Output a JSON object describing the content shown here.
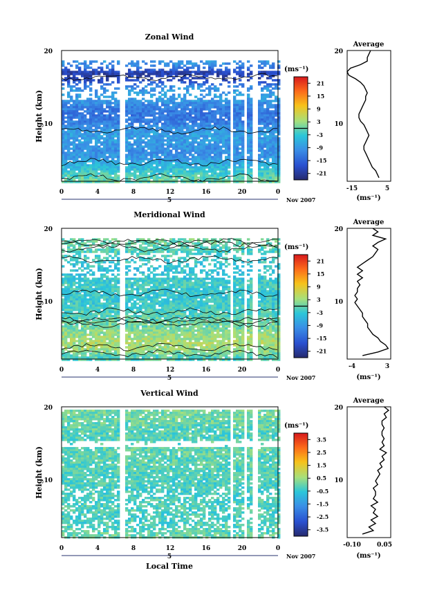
{
  "date_label": "Nov 2007",
  "day_label": "5",
  "shared_xlabel": "Local Time",
  "x_ticks": [
    "0",
    "4",
    "8",
    "12",
    "16",
    "20",
    "0"
  ],
  "y_ticks": [
    "10",
    "20"
  ],
  "units_label": "(ms⁻¹)",
  "avg_title": "Average",
  "avg_xlabel": "(ms⁻¹)",
  "chart_data": [
    {
      "type": "heatmap",
      "title": "Zonal Wind",
      "xlabel": "Local Time",
      "ylabel": "Height (km)",
      "xlim": [
        0,
        24
      ],
      "ylim": [
        1.5,
        20
      ],
      "colorbar_label": "(ms⁻¹)",
      "colorbar_ticks": [
        "21",
        "15",
        "9",
        "3",
        "-3",
        "-9",
        "-15",
        "-21"
      ],
      "colorbar_range": [
        -24,
        24
      ],
      "contour_level": 0,
      "data_gaps_hours": [
        6.6,
        18.6,
        20.3,
        21.3
      ],
      "profile_by_height": [
        [
          2,
          0
        ],
        [
          3,
          -3
        ],
        [
          4,
          -6
        ],
        [
          5,
          -9
        ],
        [
          6,
          -10
        ],
        [
          7,
          -9
        ],
        [
          8,
          -8
        ],
        [
          9,
          -9
        ],
        [
          10,
          -12
        ],
        [
          11,
          -13
        ],
        [
          12,
          -12
        ],
        [
          13,
          -9
        ],
        [
          14,
          -8
        ],
        [
          15,
          -10
        ],
        [
          16,
          -19
        ],
        [
          17,
          -20
        ],
        [
          18,
          -11
        ],
        [
          19,
          -8
        ]
      ]
    },
    {
      "type": "line",
      "title": "Average",
      "xlabel": "(ms⁻¹)",
      "ylabel": "Height (km)",
      "xlim": [
        -20,
        6
      ],
      "ylim": [
        1.5,
        20
      ],
      "x_ticks": [
        "-15",
        "5"
      ],
      "y_ticks": [
        "10",
        "20"
      ],
      "points": [
        [
          -1,
          2
        ],
        [
          -2,
          2.5
        ],
        [
          -3,
          3
        ],
        [
          -5,
          3.5
        ],
        [
          -6,
          4
        ],
        [
          -7,
          4.5
        ],
        [
          -8,
          5
        ],
        [
          -9,
          5.5
        ],
        [
          -10,
          6
        ],
        [
          -10,
          6.5
        ],
        [
          -9,
          7
        ],
        [
          -8,
          7.5
        ],
        [
          -7,
          8
        ],
        [
          -8,
          8.5
        ],
        [
          -9,
          9
        ],
        [
          -10,
          9.5
        ],
        [
          -12,
          10
        ],
        [
          -13,
          10.5
        ],
        [
          -13,
          11
        ],
        [
          -12,
          11.5
        ],
        [
          -11,
          12
        ],
        [
          -10,
          12.5
        ],
        [
          -9,
          13
        ],
        [
          -9,
          13.5
        ],
        [
          -8,
          14
        ],
        [
          -9,
          14.5
        ],
        [
          -10,
          15
        ],
        [
          -12,
          15.5
        ],
        [
          -15,
          16
        ],
        [
          -19,
          16.5
        ],
        [
          -20,
          17
        ],
        [
          -18,
          17.5
        ],
        [
          -12,
          18
        ],
        [
          -8,
          18.5
        ],
        [
          -8,
          19
        ],
        [
          -7,
          19.5
        ],
        [
          -6,
          20
        ]
      ]
    },
    {
      "type": "heatmap",
      "title": "Meridional Wind",
      "xlabel": "Local Time",
      "ylabel": "Height (km)",
      "xlim": [
        0,
        24
      ],
      "ylim": [
        1.5,
        20
      ],
      "colorbar_label": "(ms⁻¹)",
      "colorbar_ticks": [
        "21",
        "15",
        "9",
        "3",
        "-3",
        "-9",
        "-15",
        "-21"
      ],
      "colorbar_range": [
        -24,
        24
      ],
      "contour_level": 0,
      "data_gaps_hours": [
        6.6,
        18.6,
        20.3,
        21.3
      ],
      "profile_by_height": [
        [
          2,
          -1
        ],
        [
          3,
          3
        ],
        [
          4,
          4
        ],
        [
          5,
          3
        ],
        [
          6,
          1
        ],
        [
          7,
          0
        ],
        [
          8,
          -1
        ],
        [
          9,
          -2
        ],
        [
          10,
          -3
        ],
        [
          11,
          -3
        ],
        [
          12,
          -2
        ],
        [
          13,
          -3
        ],
        [
          14,
          -4
        ],
        [
          15,
          -3
        ],
        [
          16,
          -2
        ],
        [
          17,
          -1
        ],
        [
          18,
          0
        ],
        [
          19,
          1
        ]
      ]
    },
    {
      "type": "line",
      "title": "Average",
      "xlabel": "(ms⁻¹)",
      "ylabel": "Height (km)",
      "xlim": [
        -5,
        3.5
      ],
      "ylim": [
        1.5,
        20
      ],
      "x_ticks": [
        "-4",
        "3"
      ],
      "y_ticks": [
        "10",
        "20"
      ],
      "points": [
        [
          -2,
          2
        ],
        [
          1,
          2.5
        ],
        [
          3,
          3
        ],
        [
          2.5,
          3.5
        ],
        [
          1.5,
          4
        ],
        [
          1,
          4.5
        ],
        [
          0,
          5
        ],
        [
          -0.5,
          5.5
        ],
        [
          -1,
          6
        ],
        [
          -1,
          6.5
        ],
        [
          -1.5,
          7
        ],
        [
          -2,
          7.5
        ],
        [
          -2,
          8
        ],
        [
          -2.5,
          8.5
        ],
        [
          -3,
          9
        ],
        [
          -3.5,
          9.5
        ],
        [
          -3,
          10
        ],
        [
          -3.5,
          10.5
        ],
        [
          -3,
          11
        ],
        [
          -3,
          11.5
        ],
        [
          -2.5,
          12
        ],
        [
          -3,
          12.5
        ],
        [
          -2,
          13
        ],
        [
          -3,
          13.5
        ],
        [
          -2,
          14
        ],
        [
          -3,
          14.5
        ],
        [
          -2,
          15
        ],
        [
          -1,
          15.5
        ],
        [
          0,
          16
        ],
        [
          0.5,
          16.5
        ],
        [
          1,
          17
        ],
        [
          0,
          17.5
        ],
        [
          1,
          18
        ],
        [
          2.5,
          18.5
        ],
        [
          0,
          19
        ],
        [
          1,
          19.5
        ],
        [
          0,
          20
        ]
      ]
    },
    {
      "type": "heatmap",
      "title": "Vertical Wind",
      "xlabel": "Local Time",
      "ylabel": "Height (km)",
      "xlim": [
        0,
        24
      ],
      "ylim": [
        1.5,
        20
      ],
      "colorbar_label": "(ms⁻¹)",
      "colorbar_ticks": [
        "3.5",
        "2.5",
        "1.5",
        "0.5",
        "-0.5",
        "-1.5",
        "-2.5",
        "-3.5"
      ],
      "colorbar_range": [
        -4,
        4
      ],
      "data_gaps_hours": [
        6.6,
        18.6,
        20.3,
        21.3
      ],
      "profile_by_height": [
        [
          2,
          0
        ],
        [
          4,
          -0.3
        ],
        [
          6,
          -0.2
        ],
        [
          8,
          -0.3
        ],
        [
          10,
          -0.2
        ],
        [
          12,
          -0.1
        ],
        [
          14,
          0
        ],
        [
          16,
          -0.2
        ],
        [
          18,
          0
        ],
        [
          19,
          0.1
        ]
      ]
    },
    {
      "type": "line",
      "title": "Average",
      "xlabel": "(ms⁻¹)",
      "ylabel": "Height (km)",
      "xlim": [
        -0.12,
        0.08
      ],
      "ylim": [
        1.5,
        20
      ],
      "x_ticks": [
        "-0.10",
        "0.05"
      ],
      "y_ticks": [
        "10",
        "20"
      ],
      "points": [
        [
          -0.05,
          2
        ],
        [
          0.0,
          2.5
        ],
        [
          -0.02,
          3
        ],
        [
          0.01,
          3.5
        ],
        [
          -0.01,
          4
        ],
        [
          0.02,
          4.5
        ],
        [
          0.0,
          5
        ],
        [
          0.01,
          5.5
        ],
        [
          -0.01,
          6
        ],
        [
          0.02,
          6.5
        ],
        [
          0.0,
          7
        ],
        [
          0.01,
          7.5
        ],
        [
          0.01,
          8
        ],
        [
          0.0,
          8.5
        ],
        [
          0.02,
          9
        ],
        [
          0.01,
          9.5
        ],
        [
          0.02,
          10
        ],
        [
          0.03,
          10.5
        ],
        [
          0.02,
          11
        ],
        [
          0.04,
          11.5
        ],
        [
          0.03,
          12
        ],
        [
          0.05,
          12.5
        ],
        [
          0.04,
          13
        ],
        [
          0.06,
          13.5
        ],
        [
          0.03,
          14
        ],
        [
          0.05,
          14.5
        ],
        [
          0.04,
          15
        ],
        [
          0.05,
          15.5
        ],
        [
          0.04,
          16
        ],
        [
          0.04,
          16.5
        ],
        [
          0.05,
          17
        ],
        [
          0.04,
          17.5
        ],
        [
          0.04,
          18
        ],
        [
          0.06,
          18.5
        ],
        [
          0.05,
          19
        ],
        [
          0.07,
          19.5
        ],
        [
          0.05,
          20
        ]
      ]
    }
  ]
}
